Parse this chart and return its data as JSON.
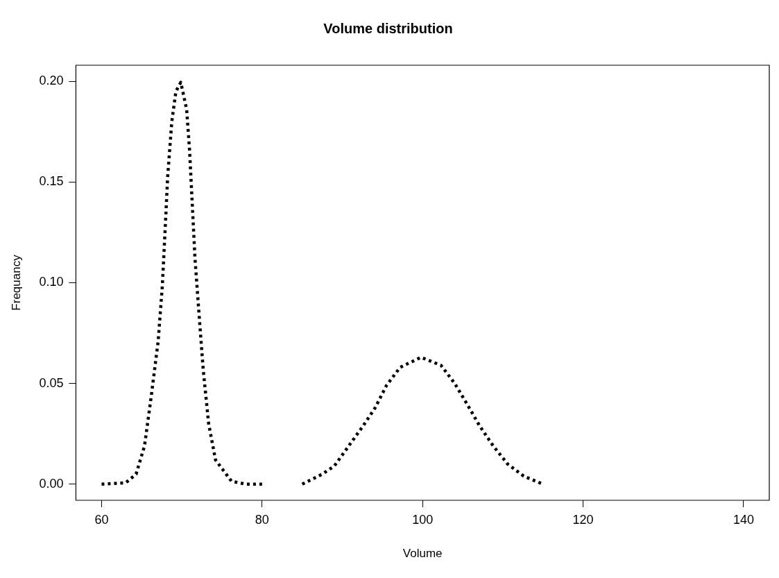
{
  "chart_data": {
    "type": "line",
    "title": "Volume distribution",
    "xlabel": "Volume",
    "ylabel": "Frequancy",
    "xlim": [
      56.8,
      143.2
    ],
    "xticks": [
      60,
      80,
      100,
      120,
      140
    ],
    "ylim": [
      -0.008,
      0.208
    ],
    "yticks": [
      {
        "value": 0,
        "label": "0.00"
      },
      0.05,
      {
        "value": 0.1,
        "label": "0.10"
      },
      0.15,
      {
        "value": 0.2,
        "label": "0.20"
      }
    ],
    "grid": false,
    "legend": false,
    "marker": "none",
    "line_style": "dotted",
    "series": [
      {
        "color": "#000000",
        "x": [
          60,
          63,
          64.3,
          65.35,
          66.2,
          67.05,
          67.56,
          67.9,
          68.24,
          68.75,
          69.26,
          69.87,
          70.6,
          70.96,
          71.3,
          71.64,
          72.15,
          72.66,
          73.34,
          74.2,
          76.2,
          78,
          80
        ],
        "values": [
          0,
          0.0007,
          0.005,
          0.019,
          0.044,
          0.071,
          0.098,
          0.125,
          0.153,
          0.18,
          0.195,
          0.1995,
          0.186,
          0.166,
          0.139,
          0.112,
          0.084,
          0.057,
          0.03,
          0.012,
          0.0014,
          0,
          0
        ]
      },
      {
        "color": "#000000",
        "x": [
          85,
          87.5,
          89,
          90.8,
          92.6,
          94.1,
          95.5,
          97.2,
          99.8,
          102.3,
          104,
          105.5,
          107.1,
          108.8,
          110.6,
          112.6,
          115
        ],
        "values": [
          0,
          0.005,
          0.009,
          0.019,
          0.029,
          0.038,
          0.049,
          0.058,
          0.063,
          0.059,
          0.05,
          0.04,
          0.029,
          0.019,
          0.01,
          0.004,
          0
        ]
      }
    ]
  }
}
